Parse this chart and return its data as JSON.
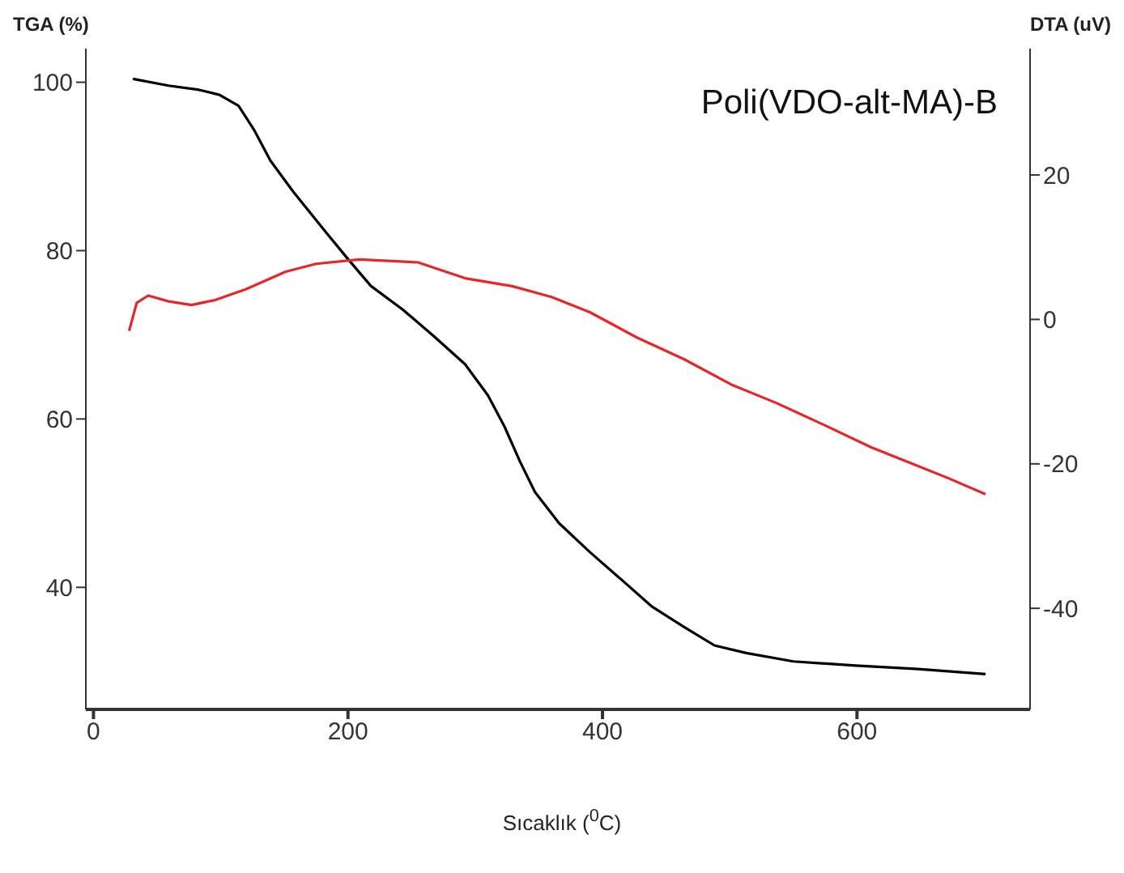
{
  "chart_data": {
    "type": "line",
    "title": "Poli(VDO-alt-MA)-B",
    "xlabel": "Sıcaklık ($^{0}$C)",
    "ylabel": "TGA (%)",
    "y2label": "DTA (uV)",
    "xlim": [
      -6,
      736
    ],
    "xticks": [
      0,
      200,
      400,
      600
    ],
    "ylim": [
      25.5,
      104
    ],
    "yticks": [
      40,
      60,
      80,
      100
    ],
    "y2lim": [
      -54,
      37.5
    ],
    "y2ticks": [
      -40,
      -20,
      0,
      20
    ],
    "grid": false,
    "legend": false,
    "marker": "none",
    "line_style": "solid",
    "series": [
      {
        "color": "#000000",
        "x": [
          31,
          59,
          83,
          99,
          114,
          126,
          139,
          157,
          182,
          200,
          218,
          243,
          267,
          292,
          310,
          323,
          335,
          347,
          366,
          390,
          415,
          439,
          464,
          488,
          513,
          550,
          599,
          648,
          701
        ],
        "values": [
          100.4,
          99.6,
          99.1,
          98.5,
          97.2,
          94.4,
          90.7,
          87,
          82.3,
          79,
          75.8,
          73,
          69.9,
          66.5,
          62.8,
          59.1,
          55,
          51.3,
          47.6,
          44.2,
          40.9,
          37.7,
          35.3,
          33.1,
          32.2,
          31.2,
          30.7,
          30.3,
          29.7
        ]
      },
      {
        "color": "#e8262a",
        "axis": "y2",
        "x": [
          28,
          34,
          43,
          59,
          77,
          96,
          120,
          151,
          175,
          209,
          255,
          292,
          329,
          360,
          390,
          427,
          464,
          501,
          537,
          574,
          611,
          648,
          672,
          701
        ],
        "values": [
          -1.6,
          2.3,
          3.3,
          2.5,
          2,
          2.7,
          4.2,
          6.6,
          7.7,
          8.3,
          7.9,
          5.7,
          4.6,
          3.1,
          1,
          -2.5,
          -5.5,
          -9,
          -11.6,
          -14.6,
          -17.7,
          -20.3,
          -22,
          -24.2
        ]
      }
    ]
  }
}
